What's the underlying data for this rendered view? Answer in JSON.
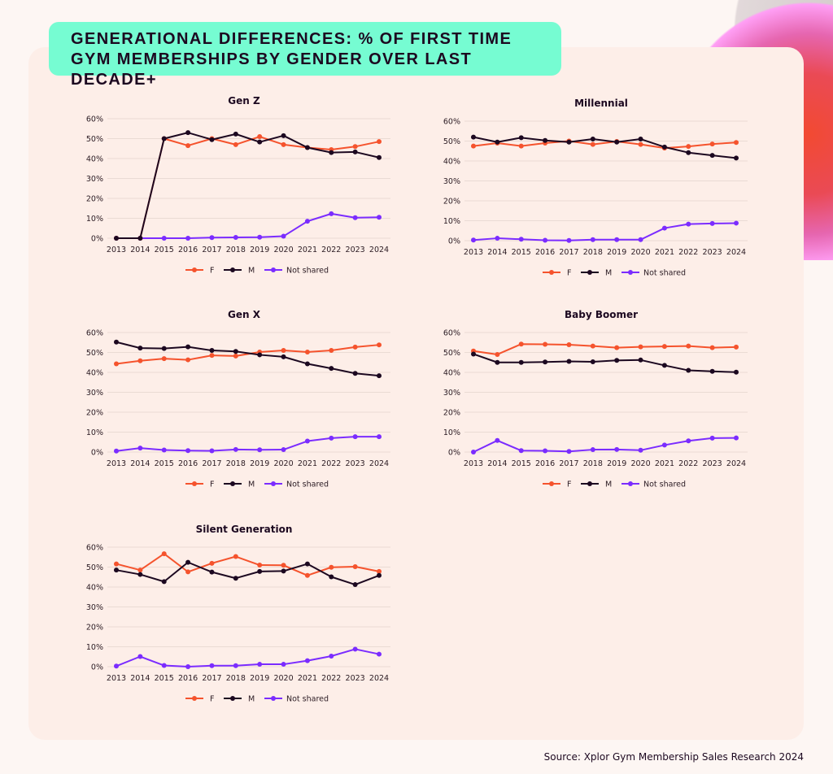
{
  "title": "GENERATIONAL DIFFERENCES: % OF FIRST TIME GYM MEMBERSHIPS BY GENDER OVER LAST DECADE+",
  "source": "Source: Xplor Gym Membership Sales Research 2024",
  "colors": {
    "F": "#f5532d",
    "M": "#1c0820",
    "Not shared": "#7b2cff",
    "banner": "#76fcd2",
    "card": "#fdeee8"
  },
  "chart_data": [
    {
      "type": "line",
      "title": "Gen Z",
      "categories": [
        "2013",
        "2014",
        "2015",
        "2016",
        "2017",
        "2018",
        "2019",
        "2020",
        "2021",
        "2022",
        "2023",
        "2024"
      ],
      "yticks": [
        "0%",
        "10%",
        "20%",
        "30%",
        "40%",
        "50%",
        "60%"
      ],
      "ylim": [
        0,
        60
      ],
      "grid": "horizontal",
      "legend": "bottom",
      "series": [
        {
          "name": "F",
          "values": [
            0,
            0,
            50,
            46.5,
            50,
            47,
            51,
            47,
            45.5,
            44.5,
            46,
            48.5
          ]
        },
        {
          "name": "M",
          "values": [
            0,
            0,
            50,
            53,
            49.5,
            52.3,
            48.3,
            51.5,
            45.5,
            43,
            43.3,
            40.5
          ]
        },
        {
          "name": "Not shared",
          "values": [
            0,
            0,
            0,
            0,
            0.3,
            0.4,
            0.5,
            1,
            8.5,
            12.3,
            10.3,
            10.5
          ]
        }
      ]
    },
    {
      "type": "line",
      "title": "Millennial",
      "categories": [
        "2013",
        "2014",
        "2015",
        "2016",
        "2017",
        "2018",
        "2019",
        "2020",
        "2021",
        "2022",
        "2023",
        "2024"
      ],
      "yticks": [
        "0%",
        "10%",
        "20%",
        "30%",
        "40%",
        "50%",
        "60%"
      ],
      "ylim": [
        0,
        60
      ],
      "grid": "horizontal",
      "legend": "bottom",
      "series": [
        {
          "name": "F",
          "values": [
            47.5,
            49,
            47.5,
            49,
            50,
            48.3,
            49.8,
            48.3,
            46.5,
            47.3,
            48.5,
            49.3
          ]
        },
        {
          "name": "M",
          "values": [
            52,
            49.5,
            51.7,
            50.3,
            49.5,
            51,
            49.5,
            51,
            47,
            44.2,
            42.8,
            41.5
          ]
        },
        {
          "name": "Not shared",
          "values": [
            0.3,
            1.2,
            0.7,
            0.2,
            0.1,
            0.5,
            0.5,
            0.5,
            6.3,
            8.3,
            8.6,
            8.8
          ]
        }
      ]
    },
    {
      "type": "line",
      "title": "Gen X",
      "categories": [
        "2013",
        "2014",
        "2015",
        "2016",
        "2017",
        "2018",
        "2019",
        "2020",
        "2021",
        "2022",
        "2023",
        "2024"
      ],
      "yticks": [
        "0%",
        "10%",
        "20%",
        "30%",
        "40%",
        "50%",
        "60%"
      ],
      "ylim": [
        0,
        60
      ],
      "grid": "horizontal",
      "legend": "bottom",
      "series": [
        {
          "name": "F",
          "values": [
            44.3,
            45.8,
            46.9,
            46.3,
            48.5,
            48.2,
            50.2,
            51,
            50.2,
            51,
            52.7,
            53.8
          ]
        },
        {
          "name": "M",
          "values": [
            55.2,
            52.2,
            52,
            52.8,
            51,
            50.5,
            48.8,
            47.8,
            44.3,
            42,
            39.5,
            38.3
          ]
        },
        {
          "name": "Not shared",
          "values": [
            0.5,
            2,
            1,
            0.7,
            0.6,
            1.3,
            1.1,
            1.2,
            5.5,
            7,
            7.7,
            7.7
          ]
        }
      ]
    },
    {
      "type": "line",
      "title": "Baby Boomer",
      "categories": [
        "2013",
        "2014",
        "2015",
        "2016",
        "2017",
        "2018",
        "2019",
        "2020",
        "2021",
        "2022",
        "2023",
        "2024"
      ],
      "yticks": [
        "0%",
        "10%",
        "20%",
        "30%",
        "40%",
        "50%",
        "60%"
      ],
      "ylim": [
        0,
        60
      ],
      "grid": "horizontal",
      "legend": "bottom",
      "series": [
        {
          "name": "F",
          "values": [
            50.7,
            49,
            54.2,
            54.1,
            53.9,
            53.2,
            52.4,
            52.8,
            53,
            53.2,
            52.4,
            52.7
          ]
        },
        {
          "name": "M",
          "values": [
            49.2,
            45,
            45,
            45.2,
            45.5,
            45.3,
            46,
            46.2,
            43.5,
            41,
            40.5,
            40.1
          ]
        },
        {
          "name": "Not shared",
          "values": [
            0,
            5.8,
            0.7,
            0.6,
            0.3,
            1.2,
            1.3,
            0.9,
            3.5,
            5.6,
            7,
            7.1
          ]
        }
      ]
    },
    {
      "type": "line",
      "title": "Silent Generation",
      "categories": [
        "2013",
        "2014",
        "2015",
        "2016",
        "2017",
        "2018",
        "2019",
        "2020",
        "2021",
        "2022",
        "2023",
        "2024"
      ],
      "yticks": [
        "0%",
        "10%",
        "20%",
        "30%",
        "40%",
        "50%",
        "60%"
      ],
      "ylim": [
        0,
        60
      ],
      "grid": "horizontal",
      "legend": "bottom",
      "series": [
        {
          "name": "F",
          "values": [
            51.6,
            48.5,
            56.7,
            47.6,
            51.9,
            55.3,
            51,
            50.9,
            45.8,
            49.9,
            50.2,
            47.8
          ]
        },
        {
          "name": "M",
          "values": [
            48.5,
            46.3,
            42.7,
            52.4,
            47.5,
            44.4,
            47.8,
            48,
            51.6,
            45.1,
            41.2,
            45.8
          ]
        },
        {
          "name": "Not shared",
          "values": [
            0.3,
            5.1,
            0.6,
            0,
            0.5,
            0.5,
            1.2,
            1.2,
            3,
            5.3,
            8.8,
            6.3
          ]
        }
      ]
    }
  ]
}
